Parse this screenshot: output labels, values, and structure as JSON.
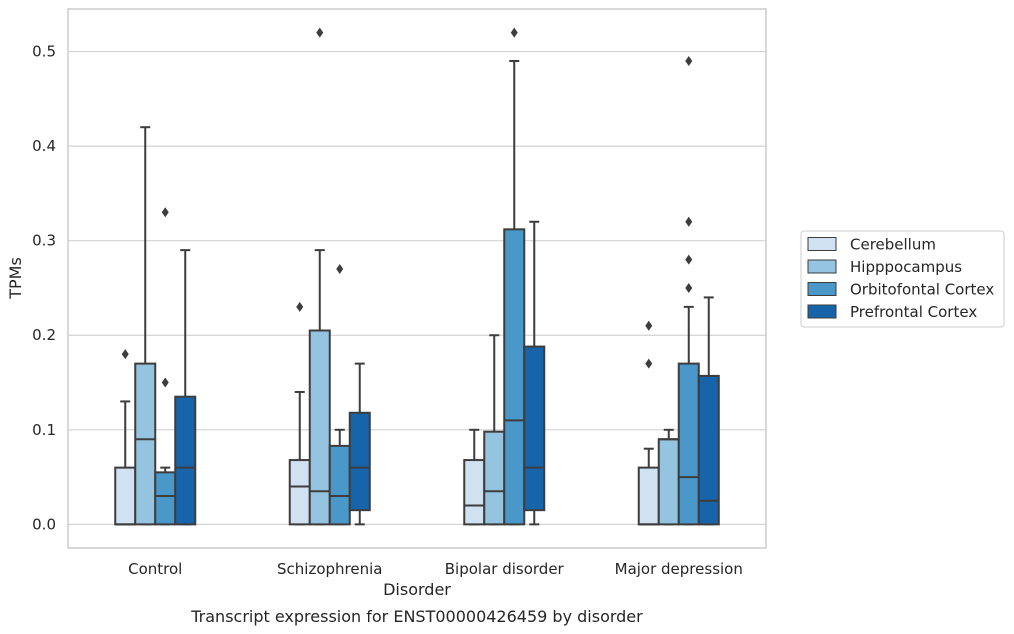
{
  "caption": "Transcript expression for ENST00000426459 by disorder",
  "chart_data": {
    "type": "box",
    "xlabel": "Disorder",
    "ylabel": "TPMs",
    "ylim": [
      -0.025,
      0.545
    ],
    "yticks": [
      "0.0",
      "0.1",
      "0.2",
      "0.3",
      "0.4",
      "0.5"
    ],
    "ytick_values": [
      0,
      0.1,
      0.2,
      0.3,
      0.4,
      0.5
    ],
    "grid": true,
    "legend_position": "right",
    "categories": [
      "Control",
      "Schizophrenia",
      "Bipolar disorder",
      "Major depression"
    ],
    "series": [
      {
        "name": "Cerebellum",
        "color": "#d0e1f2",
        "boxes": [
          {
            "min": 0,
            "q1": 0,
            "median": 0,
            "q3": 0.06,
            "max": 0.13,
            "outliers": [
              0.18
            ]
          },
          {
            "min": 0,
            "q1": 0,
            "median": 0.04,
            "q3": 0.068,
            "max": 0.14,
            "outliers": [
              0.23
            ]
          },
          {
            "min": 0,
            "q1": 0,
            "median": 0.02,
            "q3": 0.068,
            "max": 0.1,
            "outliers": []
          },
          {
            "min": 0,
            "q1": 0,
            "median": 0,
            "q3": 0.06,
            "max": 0.08,
            "outliers": [
              0.17,
              0.21
            ]
          }
        ]
      },
      {
        "name": "Hipppocampus",
        "color": "#94c4df",
        "boxes": [
          {
            "min": 0,
            "q1": 0,
            "median": 0.09,
            "q3": 0.17,
            "max": 0.42,
            "outliers": []
          },
          {
            "min": 0,
            "q1": 0,
            "median": 0.035,
            "q3": 0.205,
            "max": 0.29,
            "outliers": [
              0.52
            ]
          },
          {
            "min": 0,
            "q1": 0,
            "median": 0.035,
            "q3": 0.098,
            "max": 0.2,
            "outliers": []
          },
          {
            "min": 0,
            "q1": 0,
            "median": 0.09,
            "q3": 0.09,
            "max": 0.1,
            "outliers": []
          }
        ]
      },
      {
        "name": "Orbitofontal Cortex",
        "color": "#4a98c9",
        "boxes": [
          {
            "min": 0,
            "q1": 0,
            "median": 0.03,
            "q3": 0.055,
            "max": 0.06,
            "outliers": [
              0.15,
              0.33
            ]
          },
          {
            "min": 0,
            "q1": 0,
            "median": 0.03,
            "q3": 0.083,
            "max": 0.1,
            "outliers": [
              0.27
            ]
          },
          {
            "min": 0,
            "q1": 0,
            "median": 0.11,
            "q3": 0.312,
            "max": 0.49,
            "outliers": [
              0.52
            ]
          },
          {
            "min": 0,
            "q1": 0,
            "median": 0.05,
            "q3": 0.17,
            "max": 0.23,
            "outliers": [
              0.25,
              0.28,
              0.32,
              0.49
            ]
          }
        ]
      },
      {
        "name": "Prefrontal Cortex",
        "color": "#1764ab",
        "boxes": [
          {
            "min": 0,
            "q1": 0,
            "median": 0.06,
            "q3": 0.135,
            "max": 0.29,
            "outliers": []
          },
          {
            "min": 0,
            "q1": 0.015,
            "median": 0.06,
            "q3": 0.118,
            "max": 0.17,
            "outliers": []
          },
          {
            "min": 0,
            "q1": 0.015,
            "median": 0.06,
            "q3": 0.188,
            "max": 0.32,
            "outliers": []
          },
          {
            "min": 0,
            "q1": 0,
            "median": 0.025,
            "q3": 0.157,
            "max": 0.24,
            "outliers": []
          }
        ]
      }
    ]
  }
}
